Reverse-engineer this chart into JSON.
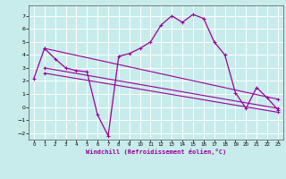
{
  "xlabel": "Windchill (Refroidissement éolien,°C)",
  "bg_color": "#c8ecec",
  "line_color": "#990099",
  "grid_color": "#ffffff",
  "xlim": [
    -0.5,
    23.5
  ],
  "ylim": [
    -2.5,
    7.8
  ],
  "xticks": [
    0,
    1,
    2,
    3,
    4,
    5,
    6,
    7,
    8,
    9,
    10,
    11,
    12,
    13,
    14,
    15,
    16,
    17,
    18,
    19,
    20,
    21,
    22,
    23
  ],
  "yticks": [
    -2,
    -1,
    0,
    1,
    2,
    3,
    4,
    5,
    6,
    7
  ],
  "curve_x": [
    0,
    1,
    2,
    3,
    4,
    5,
    6,
    7,
    8,
    9,
    10,
    11,
    12,
    13,
    14,
    15,
    16,
    17,
    18,
    19,
    20,
    21,
    22,
    23
  ],
  "curve_y": [
    2.2,
    4.5,
    3.7,
    3.0,
    2.8,
    2.7,
    -0.6,
    -2.2,
    3.9,
    4.1,
    4.5,
    5.0,
    6.3,
    7.0,
    6.5,
    7.1,
    6.8,
    5.0,
    4.0,
    1.1,
    -0.1,
    1.5,
    0.7,
    -0.2
  ],
  "trend1_x": [
    1,
    23
  ],
  "trend1_y": [
    4.5,
    0.6
  ],
  "trend2_x": [
    1,
    23
  ],
  "trend2_y": [
    3.0,
    -0.1
  ],
  "trend3_x": [
    1,
    23
  ],
  "trend3_y": [
    2.6,
    -0.4
  ]
}
